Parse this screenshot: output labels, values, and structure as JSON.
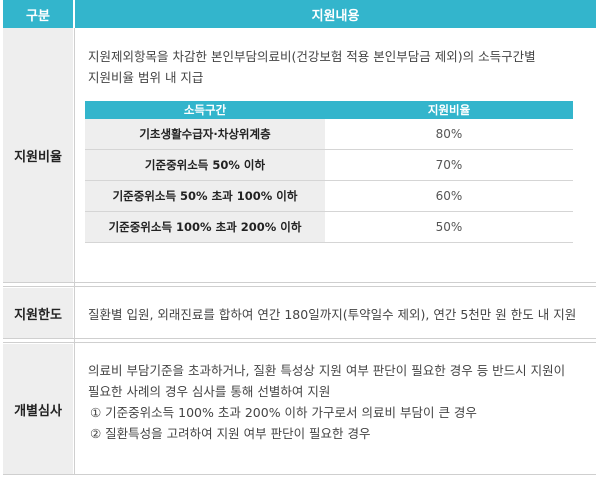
{
  "header": {
    "category_label": "구분",
    "content_label": "지원내용"
  },
  "rate": {
    "label": "지원비율",
    "desc_line1": "지원제외항목을 차감한 본인부담의료비(건강보험 적용 본인부담금 제외)의 소득구간별",
    "desc_line2": "지원비율 범위 내 지급",
    "table": {
      "col1": "소득구간",
      "col2": "지원비율",
      "rows": [
        {
          "band": "기초생활수급자·차상위계층",
          "ratio": "80%"
        },
        {
          "band": "기준중위소득 50% 이하",
          "ratio": "70%"
        },
        {
          "band": "기준중위소득 50% 초과 100% 이하",
          "ratio": "60%"
        },
        {
          "band": "기준중위소득 100% 초과 200% 이하",
          "ratio": "50%"
        }
      ]
    }
  },
  "limit": {
    "label": "지원한도",
    "text": "질환별 입원, 외래진료를 합하여 연간 180일까지(투약일수 제외), 연간 5천만 원 한도 내 지원"
  },
  "review": {
    "label": "개별심사",
    "line1": "의료비 부담기준을 초과하거나, 질환 특성상 지원 여부 판단이 필요한 경우 등 반드시 지원이",
    "line2": "필요한 사례의 경우 심사를 통해 선별하여 지원",
    "item1": "① 기준중위소득 100% 초과 200% 이하 가구로서 의료비 부담이 큰 경우",
    "item2": "② 질환특성을 고려하여 지원 여부 판단이 필요한 경우"
  }
}
